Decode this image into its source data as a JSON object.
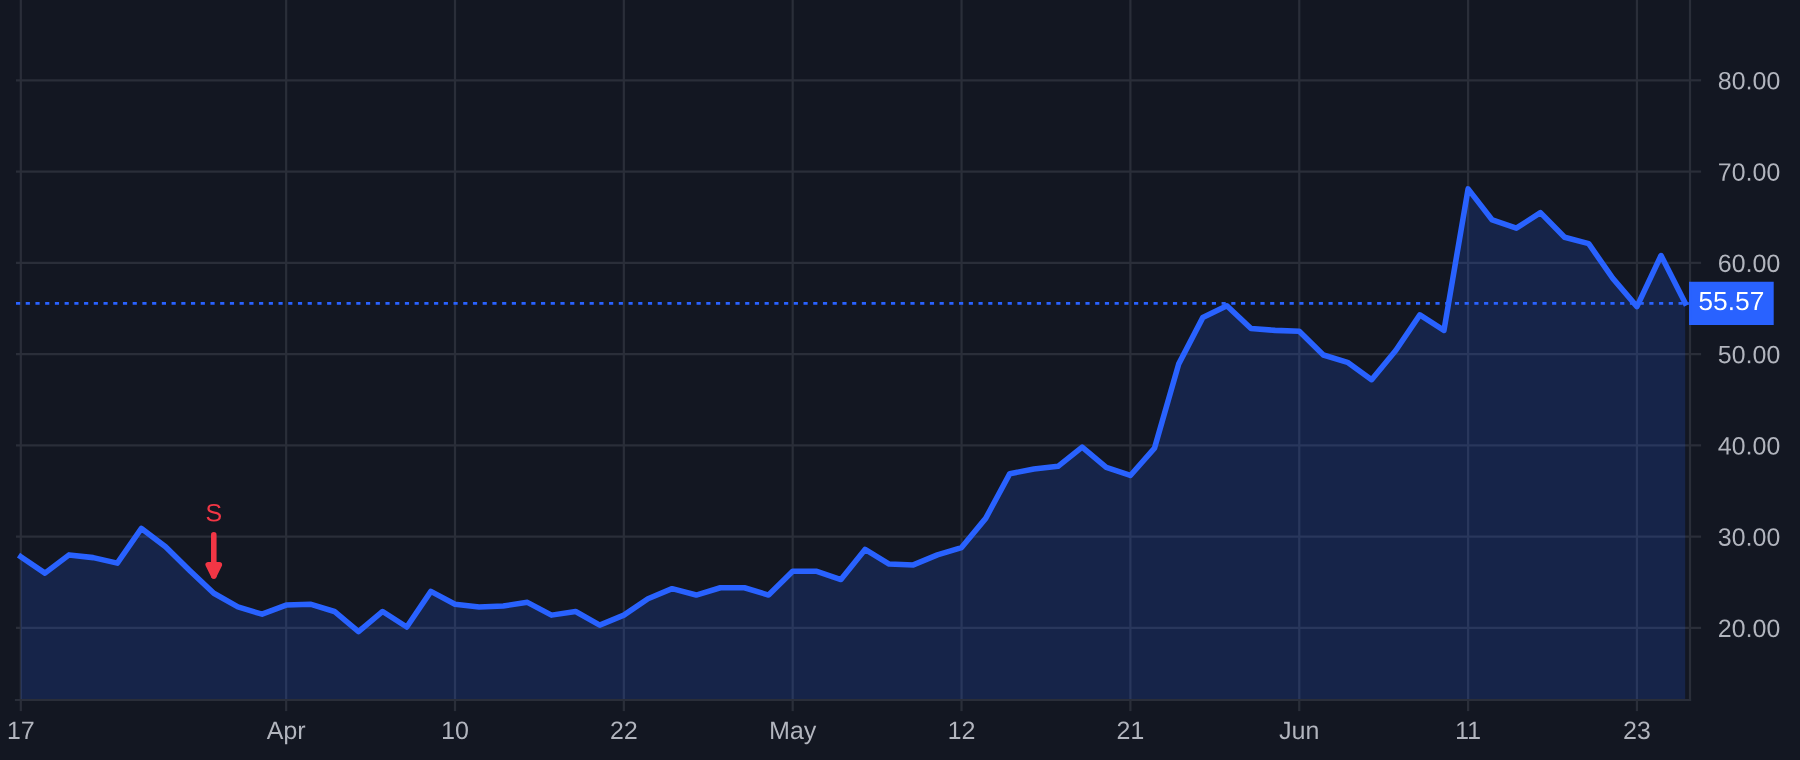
{
  "chart_data": {
    "type": "area",
    "categories": [
      "17",
      null,
      null,
      null,
      null,
      null,
      null,
      null,
      null,
      null,
      null,
      "Apr",
      null,
      null,
      null,
      null,
      null,
      null,
      "10",
      null,
      null,
      null,
      null,
      null,
      null,
      "22",
      null,
      null,
      null,
      null,
      null,
      null,
      "May",
      null,
      null,
      null,
      null,
      null,
      null,
      "12",
      null,
      null,
      null,
      null,
      null,
      null,
      "21",
      null,
      null,
      null,
      null,
      null,
      null,
      "Jun",
      null,
      null,
      null,
      null,
      null,
      null,
      "11",
      null,
      null,
      null,
      null,
      null,
      null,
      "23",
      null,
      null
    ],
    "series": [
      {
        "color": "#2962ff",
        "values": [
          27.8,
          26.0,
          28.0,
          27.7,
          27.1,
          30.9,
          28.9,
          26.3,
          23.8,
          22.3,
          21.5,
          22.5,
          22.6,
          21.8,
          19.6,
          21.8,
          20.1,
          24.0,
          22.6,
          22.3,
          22.4,
          22.8,
          21.4,
          21.8,
          20.3,
          21.4,
          23.2,
          24.3,
          23.6,
          24.4,
          24.4,
          23.6,
          26.2,
          26.2,
          25.3,
          28.6,
          27.0,
          26.9,
          28.0,
          28.8,
          32.0,
          36.9,
          37.4,
          37.7,
          39.8,
          37.6,
          36.7,
          39.7,
          48.9,
          54.0,
          55.3,
          52.8,
          52.6,
          52.5,
          49.9,
          49.1,
          47.2,
          50.4,
          54.3,
          52.6,
          68.1,
          64.7,
          63.8,
          65.5,
          62.8,
          62.1,
          58.3,
          55.2,
          60.8,
          55.6
        ]
      }
    ],
    "ylim": [
      12.1,
      88.8
    ],
    "yticks": [
      {
        "value": 20,
        "label": "20.00"
      },
      {
        "value": 30,
        "label": "30.00"
      },
      {
        "value": 40,
        "label": "40.00"
      },
      {
        "value": 50,
        "label": "50.00"
      },
      {
        "value": 60,
        "label": "60.00"
      },
      {
        "value": 70,
        "label": "70.00"
      },
      {
        "value": 80,
        "label": "80.00"
      }
    ],
    "grid": true,
    "ref_lines": [
      {
        "axis": "y",
        "value": 55.57,
        "label": "55.57",
        "color": "#2962ff",
        "line_style": "dotted"
      }
    ],
    "annotations": [
      {
        "text": "S",
        "y": 23.8
      }
    ]
  }
}
